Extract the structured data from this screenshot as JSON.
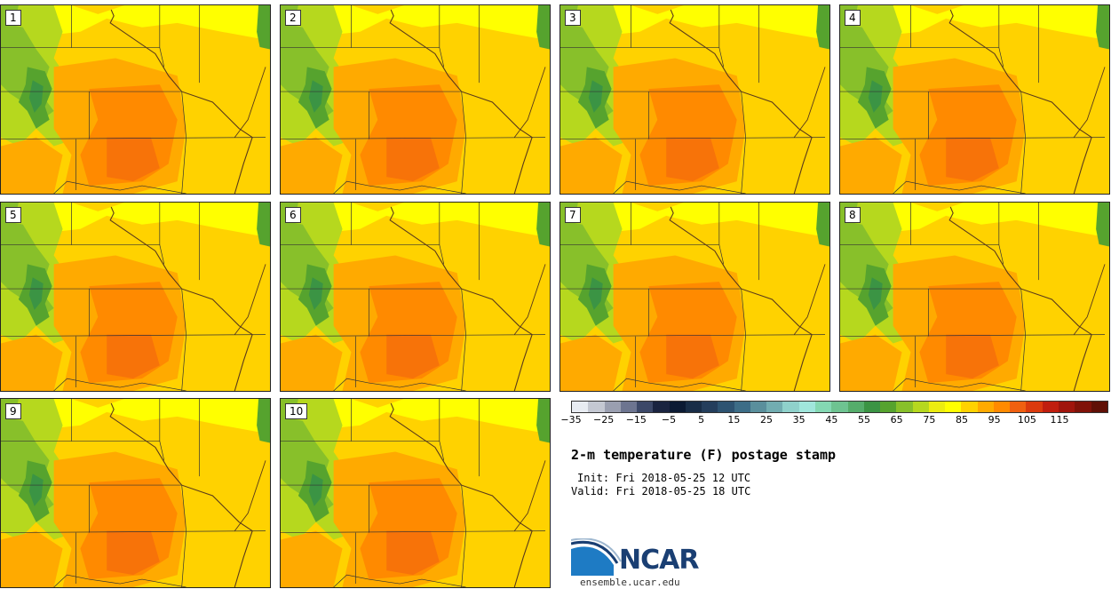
{
  "panels": [
    {
      "label": "1"
    },
    {
      "label": "2"
    },
    {
      "label": "3"
    },
    {
      "label": "4"
    },
    {
      "label": "5"
    },
    {
      "label": "6"
    },
    {
      "label": "7"
    },
    {
      "label": "8"
    },
    {
      "label": "9"
    },
    {
      "label": "10"
    }
  ],
  "colorbar": {
    "colors": [
      "#e8ecf2",
      "#c4c8d2",
      "#9a9fb0",
      "#6d7590",
      "#3c4868",
      "#1a2440",
      "#0b1a33",
      "#182d47",
      "#243e5c",
      "#2d5371",
      "#3d6d87",
      "#5a8f9c",
      "#72adb1",
      "#8fd1cb",
      "#a0e6dc",
      "#84d8b3",
      "#6ec391",
      "#55ad6b",
      "#3b9444",
      "#56a32e",
      "#88c02a",
      "#b6d81e",
      "#ecec10",
      "#ffff00",
      "#ffd200",
      "#ffaa00",
      "#ff8a00",
      "#f06010",
      "#db3a0d",
      "#c01e0e",
      "#a0150c",
      "#801208",
      "#601006"
    ],
    "ticks": [
      "−35",
      "−25",
      "−15",
      "−5",
      "5",
      "15",
      "25",
      "35",
      "45",
      "55",
      "65",
      "75",
      "85",
      "95",
      "105",
      "115"
    ]
  },
  "title": "2-m temperature (F) postage stamp",
  "init": "Init: Fri 2018-05-25 12 UTC",
  "valid": "Valid: Fri 2018-05-25 18 UTC",
  "logo": {
    "text": "NCAR",
    "url": "ensemble.ucar.edu"
  }
}
